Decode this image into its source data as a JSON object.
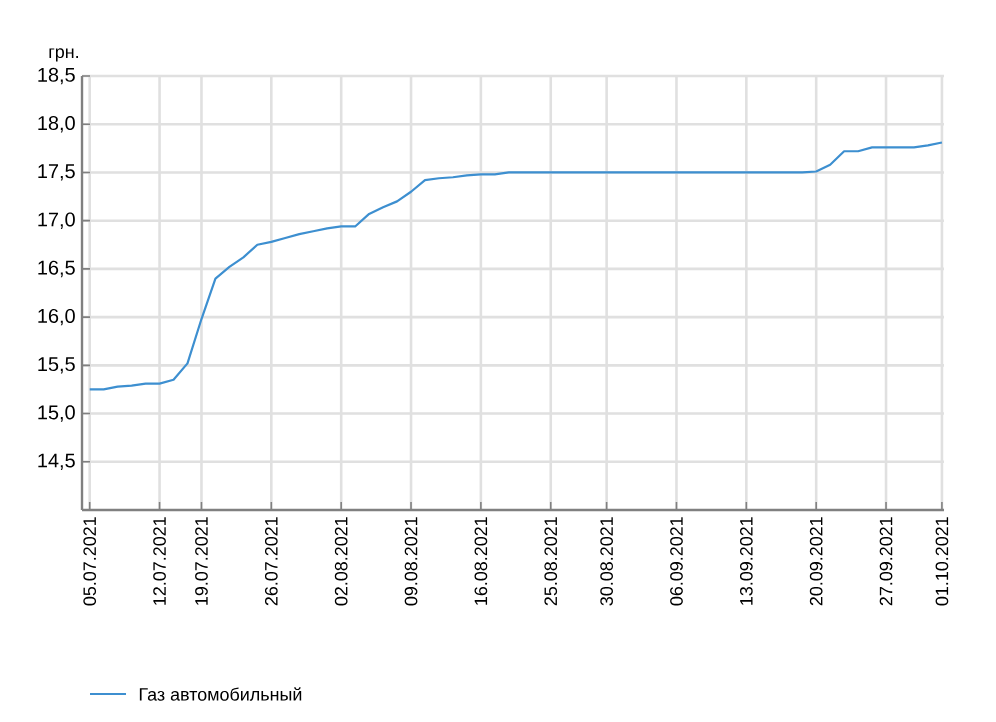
{
  "chart_data": {
    "type": "line",
    "ylabel": "грн.",
    "categories": [
      "05.07.2021",
      null,
      null,
      null,
      null,
      "12.07.2021",
      null,
      null,
      "19.07.2021",
      null,
      null,
      null,
      null,
      "26.07.2021",
      null,
      null,
      null,
      null,
      "02.08.2021",
      null,
      null,
      null,
      null,
      "09.08.2021",
      null,
      null,
      null,
      null,
      "16.08.2021",
      null,
      null,
      null,
      null,
      "25.08.2021",
      null,
      null,
      null,
      "30.08.2021",
      null,
      null,
      null,
      null,
      "06.09.2021",
      null,
      null,
      null,
      null,
      "13.09.2021",
      null,
      null,
      null,
      null,
      "20.09.2021",
      null,
      null,
      null,
      null,
      "27.09.2021",
      null,
      null,
      null,
      "01.10.2021"
    ],
    "series": [
      {
        "name": "Газ автомобильный",
        "color": "#3d8fd0",
        "values": [
          15.25,
          15.25,
          15.28,
          15.29,
          15.31,
          15.31,
          15.35,
          15.52,
          15.98,
          16.4,
          16.52,
          16.62,
          16.75,
          16.78,
          16.82,
          16.86,
          16.89,
          16.92,
          16.94,
          16.94,
          17.07,
          17.14,
          17.2,
          17.3,
          17.42,
          17.44,
          17.45,
          17.47,
          17.48,
          17.48,
          17.5,
          17.5,
          17.5,
          17.5,
          17.5,
          17.5,
          17.5,
          17.5,
          17.5,
          17.5,
          17.5,
          17.5,
          17.5,
          17.5,
          17.5,
          17.5,
          17.5,
          17.5,
          17.5,
          17.5,
          17.5,
          17.5,
          17.51,
          17.58,
          17.72,
          17.72,
          17.76,
          17.76,
          17.76,
          17.76,
          17.78,
          17.81
        ]
      }
    ],
    "ylim": [
      14,
      18.5
    ],
    "yticks": [
      {
        "value": 14.5,
        "label": "14,5"
      },
      {
        "value": 15,
        "label": "15,0"
      },
      {
        "value": 15.5,
        "label": "15,5"
      },
      {
        "value": 16,
        "label": "16,0"
      },
      {
        "value": 16.5,
        "label": "16,5"
      },
      {
        "value": 17,
        "label": "17,0"
      },
      {
        "value": 17.5,
        "label": "17,5"
      },
      {
        "value": 18,
        "label": "18,0"
      },
      {
        "value": 18.5,
        "label": "18,5"
      }
    ],
    "grid": true,
    "legend": "bottom",
    "marker": "none",
    "line_style": "solid"
  }
}
